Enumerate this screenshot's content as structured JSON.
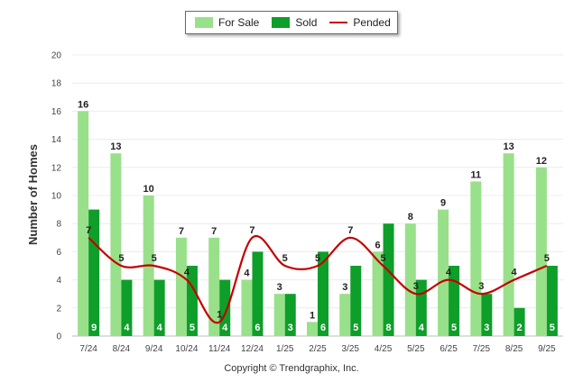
{
  "legend": {
    "items": [
      {
        "label": "For Sale",
        "color": "#99e08a",
        "kind": "bar"
      },
      {
        "label": "Sold",
        "color": "#0e9e2a",
        "kind": "bar"
      },
      {
        "label": "Pended",
        "color": "#c40000",
        "kind": "line"
      }
    ]
  },
  "copyright": "Copyright © Trendgraphix, Inc.",
  "chart_data": {
    "type": "bar",
    "title": "",
    "xlabel": "",
    "ylabel": "Number of Homes",
    "ylim": [
      0,
      20
    ],
    "yticks": [
      0,
      2,
      4,
      6,
      8,
      10,
      12,
      14,
      16,
      18,
      20
    ],
    "grid": true,
    "categories": [
      "7/24",
      "8/24",
      "9/24",
      "10/24",
      "11/24",
      "12/24",
      "1/25",
      "2/25",
      "3/25",
      "4/25",
      "5/25",
      "6/25",
      "7/25",
      "8/25",
      "9/25"
    ],
    "series": [
      {
        "name": "For Sale",
        "type": "bar",
        "color": "#99e08a",
        "values": [
          16,
          13,
          10,
          7,
          7,
          4,
          3,
          1,
          3,
          6,
          8,
          9,
          11,
          13,
          12
        ]
      },
      {
        "name": "Sold",
        "type": "bar",
        "color": "#0e9e2a",
        "values": [
          9,
          4,
          4,
          5,
          4,
          6,
          3,
          6,
          5,
          8,
          4,
          5,
          3,
          2,
          5
        ]
      },
      {
        "name": "Pended",
        "type": "line",
        "color": "#c40000",
        "values": [
          7,
          5,
          5,
          4,
          1,
          7,
          5,
          5,
          7,
          5,
          3,
          4,
          3,
          4,
          5
        ]
      }
    ]
  }
}
